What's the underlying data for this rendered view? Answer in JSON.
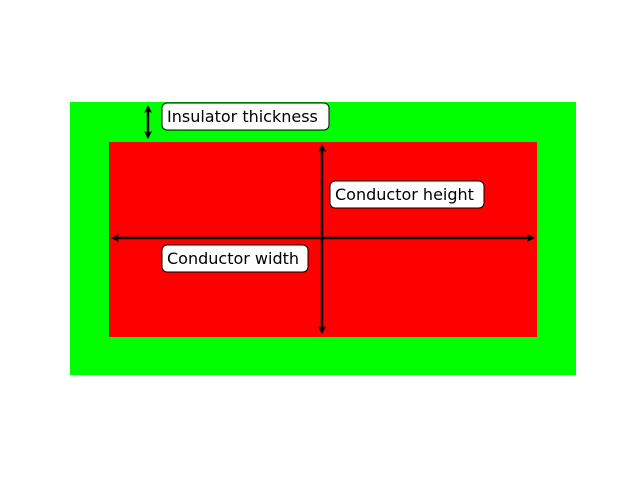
{
  "diagram": {
    "colors": {
      "insulator": "#00ff00",
      "conductor": "#ff0000",
      "arrow": "#000000",
      "label_background": "#ffffff",
      "label_border": "#000000"
    },
    "labels": {
      "insulator_thickness": "Insulator thickness",
      "conductor_height": "Conductor height",
      "conductor_width": "Conductor width"
    }
  }
}
